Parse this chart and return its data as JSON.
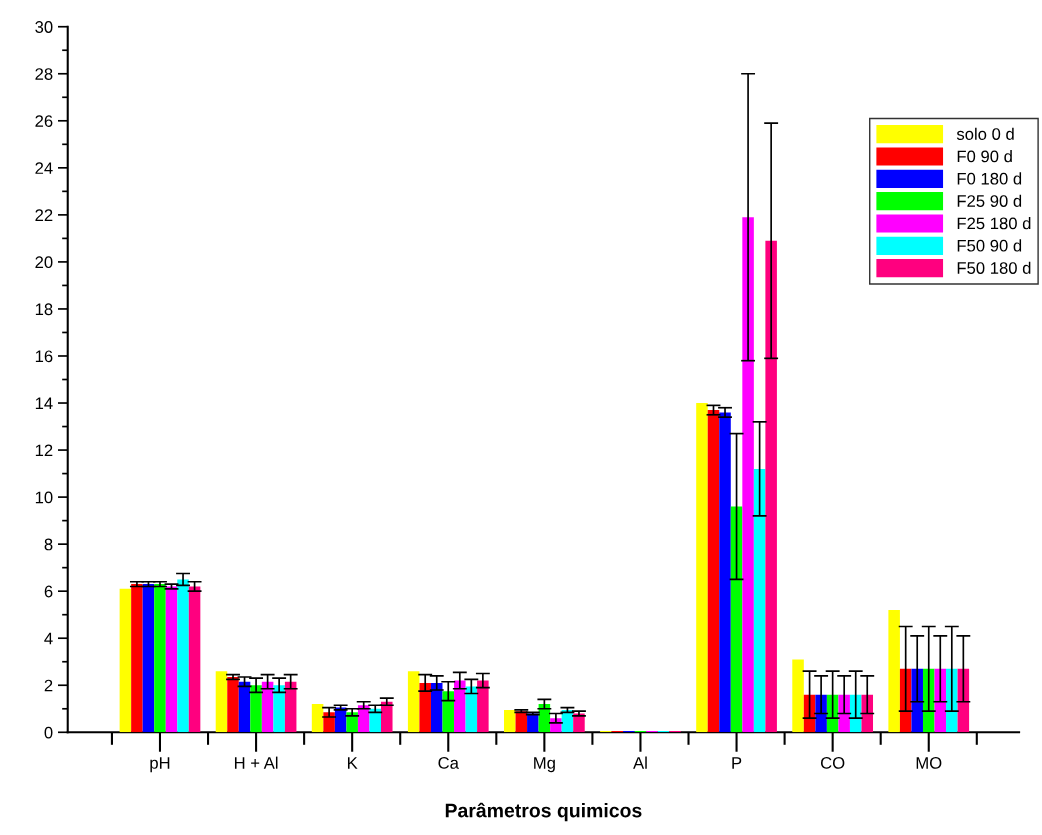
{
  "chart_data": {
    "type": "bar",
    "xlabel": "Parâmetros quimicos",
    "categories": [
      "pH",
      "H + Al",
      "K",
      "Ca",
      "Mg",
      "Al",
      "P",
      "CO",
      "MO"
    ],
    "ylim": [
      0,
      30
    ],
    "yticks": [
      0,
      2,
      4,
      6,
      8,
      10,
      12,
      14,
      16,
      18,
      20,
      22,
      24,
      26,
      28,
      30
    ],
    "grid": false,
    "legend": "top right",
    "series": [
      {
        "name": "solo 0 d",
        "color": "#ffff00",
        "values": [
          6.1,
          2.6,
          1.2,
          2.6,
          0.95,
          0.05,
          14.0,
          3.1,
          5.2
        ]
      },
      {
        "name": "F0 90 d",
        "color": "#ff0000",
        "values": [
          6.3,
          2.35,
          0.85,
          2.1,
          0.9,
          0.05,
          13.7,
          1.6,
          2.7
        ],
        "errors": [
          0.1,
          0.1,
          0.2,
          0.35,
          0.05,
          null,
          0.2,
          1.0,
          1.8
        ]
      },
      {
        "name": "F0 180 d",
        "color": "#0000ff",
        "values": [
          6.3,
          2.15,
          1.05,
          2.1,
          0.8,
          0.05,
          13.6,
          1.6,
          2.7
        ],
        "errors": [
          0.1,
          0.2,
          0.1,
          0.3,
          0.05,
          null,
          0.2,
          0.8,
          1.4
        ]
      },
      {
        "name": "F25 90 d",
        "color": "#00ff00",
        "values": [
          6.3,
          2.0,
          0.85,
          1.75,
          1.2,
          0.05,
          9.6,
          1.6,
          2.7
        ],
        "errors": [
          0.1,
          0.3,
          0.15,
          0.4,
          0.2,
          null,
          3.1,
          1.0,
          1.8
        ]
      },
      {
        "name": "F25 180 d",
        "color": "#ff00ff",
        "values": [
          6.2,
          2.15,
          1.15,
          2.2,
          0.6,
          0.05,
          21.9,
          1.6,
          2.7
        ],
        "errors": [
          0.1,
          0.3,
          0.15,
          0.35,
          0.2,
          null,
          6.1,
          0.8,
          1.4
        ]
      },
      {
        "name": "F50 90 d",
        "color": "#00ffff",
        "values": [
          6.5,
          2.0,
          1.0,
          1.95,
          0.95,
          0.05,
          11.2,
          1.6,
          2.7
        ],
        "errors": [
          0.25,
          0.3,
          0.15,
          0.3,
          0.1,
          null,
          2.0,
          1.0,
          1.8
        ]
      },
      {
        "name": "F50 180 d",
        "color": "#ff007f",
        "values": [
          6.2,
          2.15,
          1.3,
          2.2,
          0.8,
          0.05,
          20.9,
          1.6,
          2.7
        ],
        "errors": [
          0.2,
          0.3,
          0.15,
          0.3,
          0.1,
          null,
          5.0,
          0.8,
          1.4
        ]
      }
    ]
  }
}
